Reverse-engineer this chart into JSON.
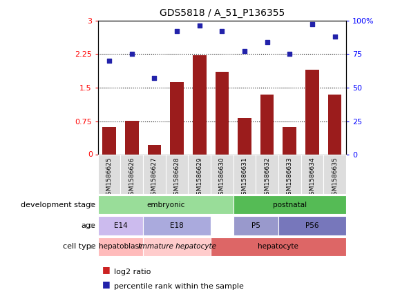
{
  "title": "GDS5818 / A_51_P136355",
  "samples": [
    "GSM1586625",
    "GSM1586626",
    "GSM1586627",
    "GSM1586628",
    "GSM1586629",
    "GSM1586630",
    "GSM1586631",
    "GSM1586632",
    "GSM1586633",
    "GSM1586634",
    "GSM1586635"
  ],
  "log2_ratio": [
    0.62,
    0.76,
    0.22,
    1.62,
    2.22,
    1.85,
    0.82,
    1.35,
    0.62,
    1.9,
    1.35
  ],
  "percentile": [
    70,
    75,
    57,
    92,
    96,
    92,
    77,
    84,
    75,
    97,
    88
  ],
  "ylim_left": [
    0,
    3
  ],
  "ylim_right": [
    0,
    100
  ],
  "yticks_left": [
    0,
    0.75,
    1.5,
    2.25,
    3
  ],
  "yticks_right": [
    0,
    25,
    50,
    75,
    100
  ],
  "bar_color": "#9B1C1C",
  "dot_color": "#2222AA",
  "dev_segments": [
    {
      "start": 0,
      "end": 5,
      "color": "#99DD99",
      "label": "embryonic"
    },
    {
      "start": 6,
      "end": 10,
      "color": "#55BB55",
      "label": "postnatal"
    }
  ],
  "age_segments": [
    {
      "start": 0,
      "end": 1,
      "color": "#CCBBEE",
      "label": "E14"
    },
    {
      "start": 2,
      "end": 4,
      "color": "#AAAADD",
      "label": "E18"
    },
    {
      "start": 6,
      "end": 7,
      "color": "#9999CC",
      "label": "P5"
    },
    {
      "start": 8,
      "end": 10,
      "color": "#7777BB",
      "label": "P56"
    }
  ],
  "cell_segments": [
    {
      "start": 0,
      "end": 1,
      "color": "#FFBBBB",
      "label": "hepatoblast",
      "italic": false
    },
    {
      "start": 2,
      "end": 4,
      "color": "#FFCCCC",
      "label": "immature hepatocyte",
      "italic": true
    },
    {
      "start": 5,
      "end": 10,
      "color": "#DD6666",
      "label": "hepatocyte",
      "italic": false
    }
  ],
  "row_labels": [
    "development stage",
    "age",
    "cell type"
  ],
  "xtick_bg": "#DDDDDD",
  "legend_bar_color": "#CC2222",
  "legend_dot_color": "#2222AA"
}
